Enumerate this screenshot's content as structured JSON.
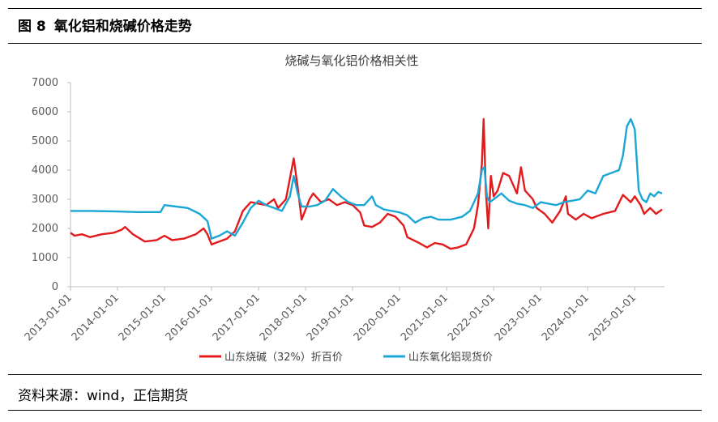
{
  "figure": {
    "number": "图 8",
    "title": "氧化铝和烧碱价格走势",
    "source": "资料来源：wind，正信期货"
  },
  "chart_data": {
    "type": "line",
    "title": "烧碱与氧化铝价格相关性",
    "xlabel": "",
    "ylabel": "",
    "ylim": [
      0,
      7000
    ],
    "yticks": [
      "0",
      "1000",
      "2000",
      "3000",
      "4000",
      "5000",
      "6000",
      "7000"
    ],
    "xticks": [
      "2013-01-01",
      "2014-01-01",
      "2015-01-01",
      "2016-01-01",
      "2017-01-01",
      "2018-01-01",
      "2019-01-01",
      "2020-01-01",
      "2021-01-01",
      "2022-01-01",
      "2023-01-01",
      "2024-01-01",
      "2025-01-01"
    ],
    "grid": false,
    "legend_position": "bottom",
    "series": [
      {
        "name": "山东烧碱（32%）折百价",
        "color": "#e31a1c",
        "points": [
          [
            "2013-01-01",
            1850
          ],
          [
            "2013-02-01",
            1750
          ],
          [
            "2013-04-01",
            1800
          ],
          [
            "2013-06-01",
            1700
          ],
          [
            "2013-09-01",
            1800
          ],
          [
            "2013-12-01",
            1850
          ],
          [
            "2014-02-01",
            1950
          ],
          [
            "2014-03-01",
            2050
          ],
          [
            "2014-05-01",
            1800
          ],
          [
            "2014-08-01",
            1550
          ],
          [
            "2014-11-01",
            1600
          ],
          [
            "2015-01-01",
            1750
          ],
          [
            "2015-03-01",
            1600
          ],
          [
            "2015-06-01",
            1650
          ],
          [
            "2015-09-01",
            1800
          ],
          [
            "2015-11-01",
            2000
          ],
          [
            "2015-12-01",
            1800
          ],
          [
            "2016-01-01",
            1450
          ],
          [
            "2016-03-01",
            1550
          ],
          [
            "2016-05-01",
            1650
          ],
          [
            "2016-07-01",
            1900
          ],
          [
            "2016-09-01",
            2600
          ],
          [
            "2016-11-01",
            2900
          ],
          [
            "2017-01-01",
            2850
          ],
          [
            "2017-03-01",
            2800
          ],
          [
            "2017-05-01",
            3000
          ],
          [
            "2017-06-01",
            2700
          ],
          [
            "2017-08-01",
            3000
          ],
          [
            "2017-10-01",
            4400
          ],
          [
            "2017-11-01",
            3400
          ],
          [
            "2017-12-01",
            2300
          ],
          [
            "2018-02-01",
            3000
          ],
          [
            "2018-03-01",
            3200
          ],
          [
            "2018-05-01",
            2900
          ],
          [
            "2018-07-01",
            3000
          ],
          [
            "2018-09-01",
            2800
          ],
          [
            "2018-11-01",
            2900
          ],
          [
            "2019-01-01",
            2800
          ],
          [
            "2019-03-01",
            2550
          ],
          [
            "2019-04-01",
            2100
          ],
          [
            "2019-06-01",
            2050
          ],
          [
            "2019-08-01",
            2200
          ],
          [
            "2019-10-01",
            2500
          ],
          [
            "2019-12-01",
            2400
          ],
          [
            "2020-02-01",
            2100
          ],
          [
            "2020-03-01",
            1700
          ],
          [
            "2020-06-01",
            1500
          ],
          [
            "2020-08-01",
            1350
          ],
          [
            "2020-10-01",
            1500
          ],
          [
            "2020-12-01",
            1450
          ],
          [
            "2021-02-01",
            1300
          ],
          [
            "2021-04-01",
            1350
          ],
          [
            "2021-06-01",
            1450
          ],
          [
            "2021-08-01",
            2000
          ],
          [
            "2021-09-01",
            2800
          ],
          [
            "2021-10-01",
            4200
          ],
          [
            "2021-10-15",
            5750
          ],
          [
            "2021-11-01",
            3300
          ],
          [
            "2021-11-20",
            2000
          ],
          [
            "2021-12-10",
            3800
          ],
          [
            "2022-01-01",
            3100
          ],
          [
            "2022-02-01",
            3300
          ],
          [
            "2022-03-15",
            3900
          ],
          [
            "2022-05-01",
            3800
          ],
          [
            "2022-07-01",
            3200
          ],
          [
            "2022-08-01",
            4100
          ],
          [
            "2022-09-01",
            3300
          ],
          [
            "2022-11-01",
            3000
          ],
          [
            "2022-12-01",
            2700
          ],
          [
            "2023-02-01",
            2500
          ],
          [
            "2023-04-01",
            2200
          ],
          [
            "2023-06-01",
            2600
          ],
          [
            "2023-07-15",
            3100
          ],
          [
            "2023-08-01",
            2500
          ],
          [
            "2023-10-01",
            2300
          ],
          [
            "2023-12-01",
            2500
          ],
          [
            "2024-02-01",
            2350
          ],
          [
            "2024-05-01",
            2500
          ],
          [
            "2024-08-01",
            2600
          ],
          [
            "2024-10-01",
            3150
          ],
          [
            "2024-12-01",
            2900
          ],
          [
            "2025-01-01",
            3100
          ],
          [
            "2025-02-15",
            2800
          ],
          [
            "2025-03-15",
            2500
          ],
          [
            "2025-05-01",
            2700
          ],
          [
            "2025-06-15",
            2500
          ],
          [
            "2025-08-01",
            2650
          ]
        ]
      },
      {
        "name": "山东氧化铝现货价",
        "color": "#1aa7d6",
        "points": [
          [
            "2013-01-01",
            2600
          ],
          [
            "2013-06-01",
            2600
          ],
          [
            "2014-01-01",
            2580
          ],
          [
            "2014-06-01",
            2560
          ],
          [
            "2014-12-01",
            2560
          ],
          [
            "2015-01-01",
            2800
          ],
          [
            "2015-04-01",
            2750
          ],
          [
            "2015-07-01",
            2700
          ],
          [
            "2015-10-01",
            2500
          ],
          [
            "2015-12-01",
            2250
          ],
          [
            "2016-01-01",
            1650
          ],
          [
            "2016-03-01",
            1750
          ],
          [
            "2016-05-01",
            1900
          ],
          [
            "2016-07-01",
            1750
          ],
          [
            "2016-09-01",
            2200
          ],
          [
            "2016-11-01",
            2700
          ],
          [
            "2017-01-01",
            2950
          ],
          [
            "2017-03-01",
            2800
          ],
          [
            "2017-05-01",
            2700
          ],
          [
            "2017-07-01",
            2600
          ],
          [
            "2017-09-01",
            3100
          ],
          [
            "2017-10-01",
            3800
          ],
          [
            "2017-11-01",
            3200
          ],
          [
            "2017-12-01",
            2750
          ],
          [
            "2018-02-01",
            2750
          ],
          [
            "2018-04-01",
            2800
          ],
          [
            "2018-06-01",
            2950
          ],
          [
            "2018-08-01",
            3350
          ],
          [
            "2018-10-01",
            3100
          ],
          [
            "2018-12-01",
            2900
          ],
          [
            "2019-02-01",
            2800
          ],
          [
            "2019-04-01",
            2800
          ],
          [
            "2019-06-01",
            3100
          ],
          [
            "2019-07-01",
            2800
          ],
          [
            "2019-09-01",
            2650
          ],
          [
            "2019-11-01",
            2600
          ],
          [
            "2020-01-01",
            2550
          ],
          [
            "2020-03-01",
            2450
          ],
          [
            "2020-05-01",
            2200
          ],
          [
            "2020-07-01",
            2350
          ],
          [
            "2020-09-01",
            2400
          ],
          [
            "2020-11-01",
            2300
          ],
          [
            "2021-02-01",
            2300
          ],
          [
            "2021-05-01",
            2400
          ],
          [
            "2021-07-01",
            2600
          ],
          [
            "2021-09-01",
            3200
          ],
          [
            "2021-10-01",
            4000
          ],
          [
            "2021-10-20",
            4100
          ],
          [
            "2021-11-10",
            3100
          ],
          [
            "2021-12-01",
            2900
          ],
          [
            "2022-01-01",
            3000
          ],
          [
            "2022-03-01",
            3200
          ],
          [
            "2022-05-01",
            2950
          ],
          [
            "2022-07-01",
            2850
          ],
          [
            "2022-09-01",
            2800
          ],
          [
            "2022-11-01",
            2700
          ],
          [
            "2023-01-01",
            2900
          ],
          [
            "2023-03-01",
            2850
          ],
          [
            "2023-05-01",
            2800
          ],
          [
            "2023-07-01",
            2900
          ],
          [
            "2023-09-01",
            2950
          ],
          [
            "2023-11-01",
            3000
          ],
          [
            "2024-01-01",
            3300
          ],
          [
            "2024-03-01",
            3200
          ],
          [
            "2024-05-01",
            3800
          ],
          [
            "2024-07-01",
            3900
          ],
          [
            "2024-09-01",
            4000
          ],
          [
            "2024-10-01",
            4500
          ],
          [
            "2024-11-01",
            5500
          ],
          [
            "2024-12-01",
            5750
          ],
          [
            "2025-01-01",
            5400
          ],
          [
            "2025-02-01",
            3300
          ],
          [
            "2025-03-01",
            3000
          ],
          [
            "2025-04-01",
            2900
          ],
          [
            "2025-05-01",
            3200
          ],
          [
            "2025-06-01",
            3100
          ],
          [
            "2025-07-01",
            3250
          ],
          [
            "2025-08-01",
            3200
          ]
        ]
      }
    ]
  }
}
